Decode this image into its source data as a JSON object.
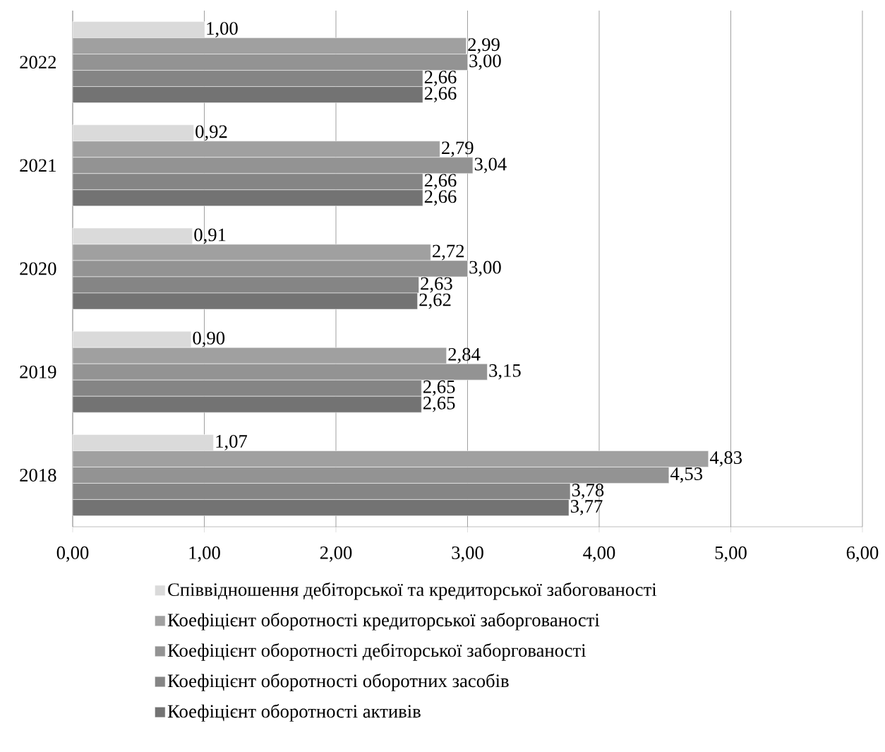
{
  "chart_data": {
    "type": "bar",
    "orientation": "horizontal",
    "categories": [
      "2022",
      "2021",
      "2020",
      "2019",
      "2018"
    ],
    "series": [
      {
        "name": "Співвідношення дебіторської та кредиторської забогованості",
        "color": "#dadada",
        "values": [
          1.0,
          0.92,
          0.91,
          0.9,
          1.07
        ],
        "value_labels": [
          "1,00",
          "0,92",
          "0,91",
          "0,90",
          "1,07"
        ]
      },
      {
        "name": "Коефіцієнт оборотності кредиторської заборгованості",
        "color": "#a0a0a0",
        "values": [
          2.99,
          2.79,
          2.72,
          2.84,
          4.83
        ],
        "value_labels": [
          "2,99",
          "2,79",
          "2,72",
          "2,84",
          "4,83"
        ]
      },
      {
        "name": "Коефіцієнт оборотності дебіторської заборгованості",
        "color": "#939393",
        "values": [
          3.0,
          3.04,
          3.0,
          3.15,
          4.53
        ],
        "value_labels": [
          "3,00",
          "3,04",
          "3,00",
          "3,15",
          "4,53"
        ]
      },
      {
        "name": "Коефіцієнт оборотності оборотних засобів",
        "color": "#858585",
        "values": [
          2.66,
          2.66,
          2.63,
          2.65,
          3.78
        ],
        "value_labels": [
          "2,66",
          "2,66",
          "2,63",
          "2,65",
          "3,78"
        ]
      },
      {
        "name": "Коефіцієнт оборотності активів",
        "color": "#737373",
        "values": [
          2.66,
          2.66,
          2.62,
          2.65,
          3.77
        ],
        "value_labels": [
          "2,66",
          "2,66",
          "2,62",
          "2,65",
          "3,77"
        ]
      }
    ],
    "xlim": [
      0,
      6
    ],
    "xticks": [
      {
        "value": 0,
        "label": "0,00"
      },
      {
        "value": 1,
        "label": "1,00"
      },
      {
        "value": 2,
        "label": "2,00"
      },
      {
        "value": 3,
        "label": "3,00"
      },
      {
        "value": 4,
        "label": "4,00"
      },
      {
        "value": 5,
        "label": "5,00"
      },
      {
        "value": 6,
        "label": "6,00"
      }
    ],
    "grid": "x",
    "legend": "bottom"
  }
}
